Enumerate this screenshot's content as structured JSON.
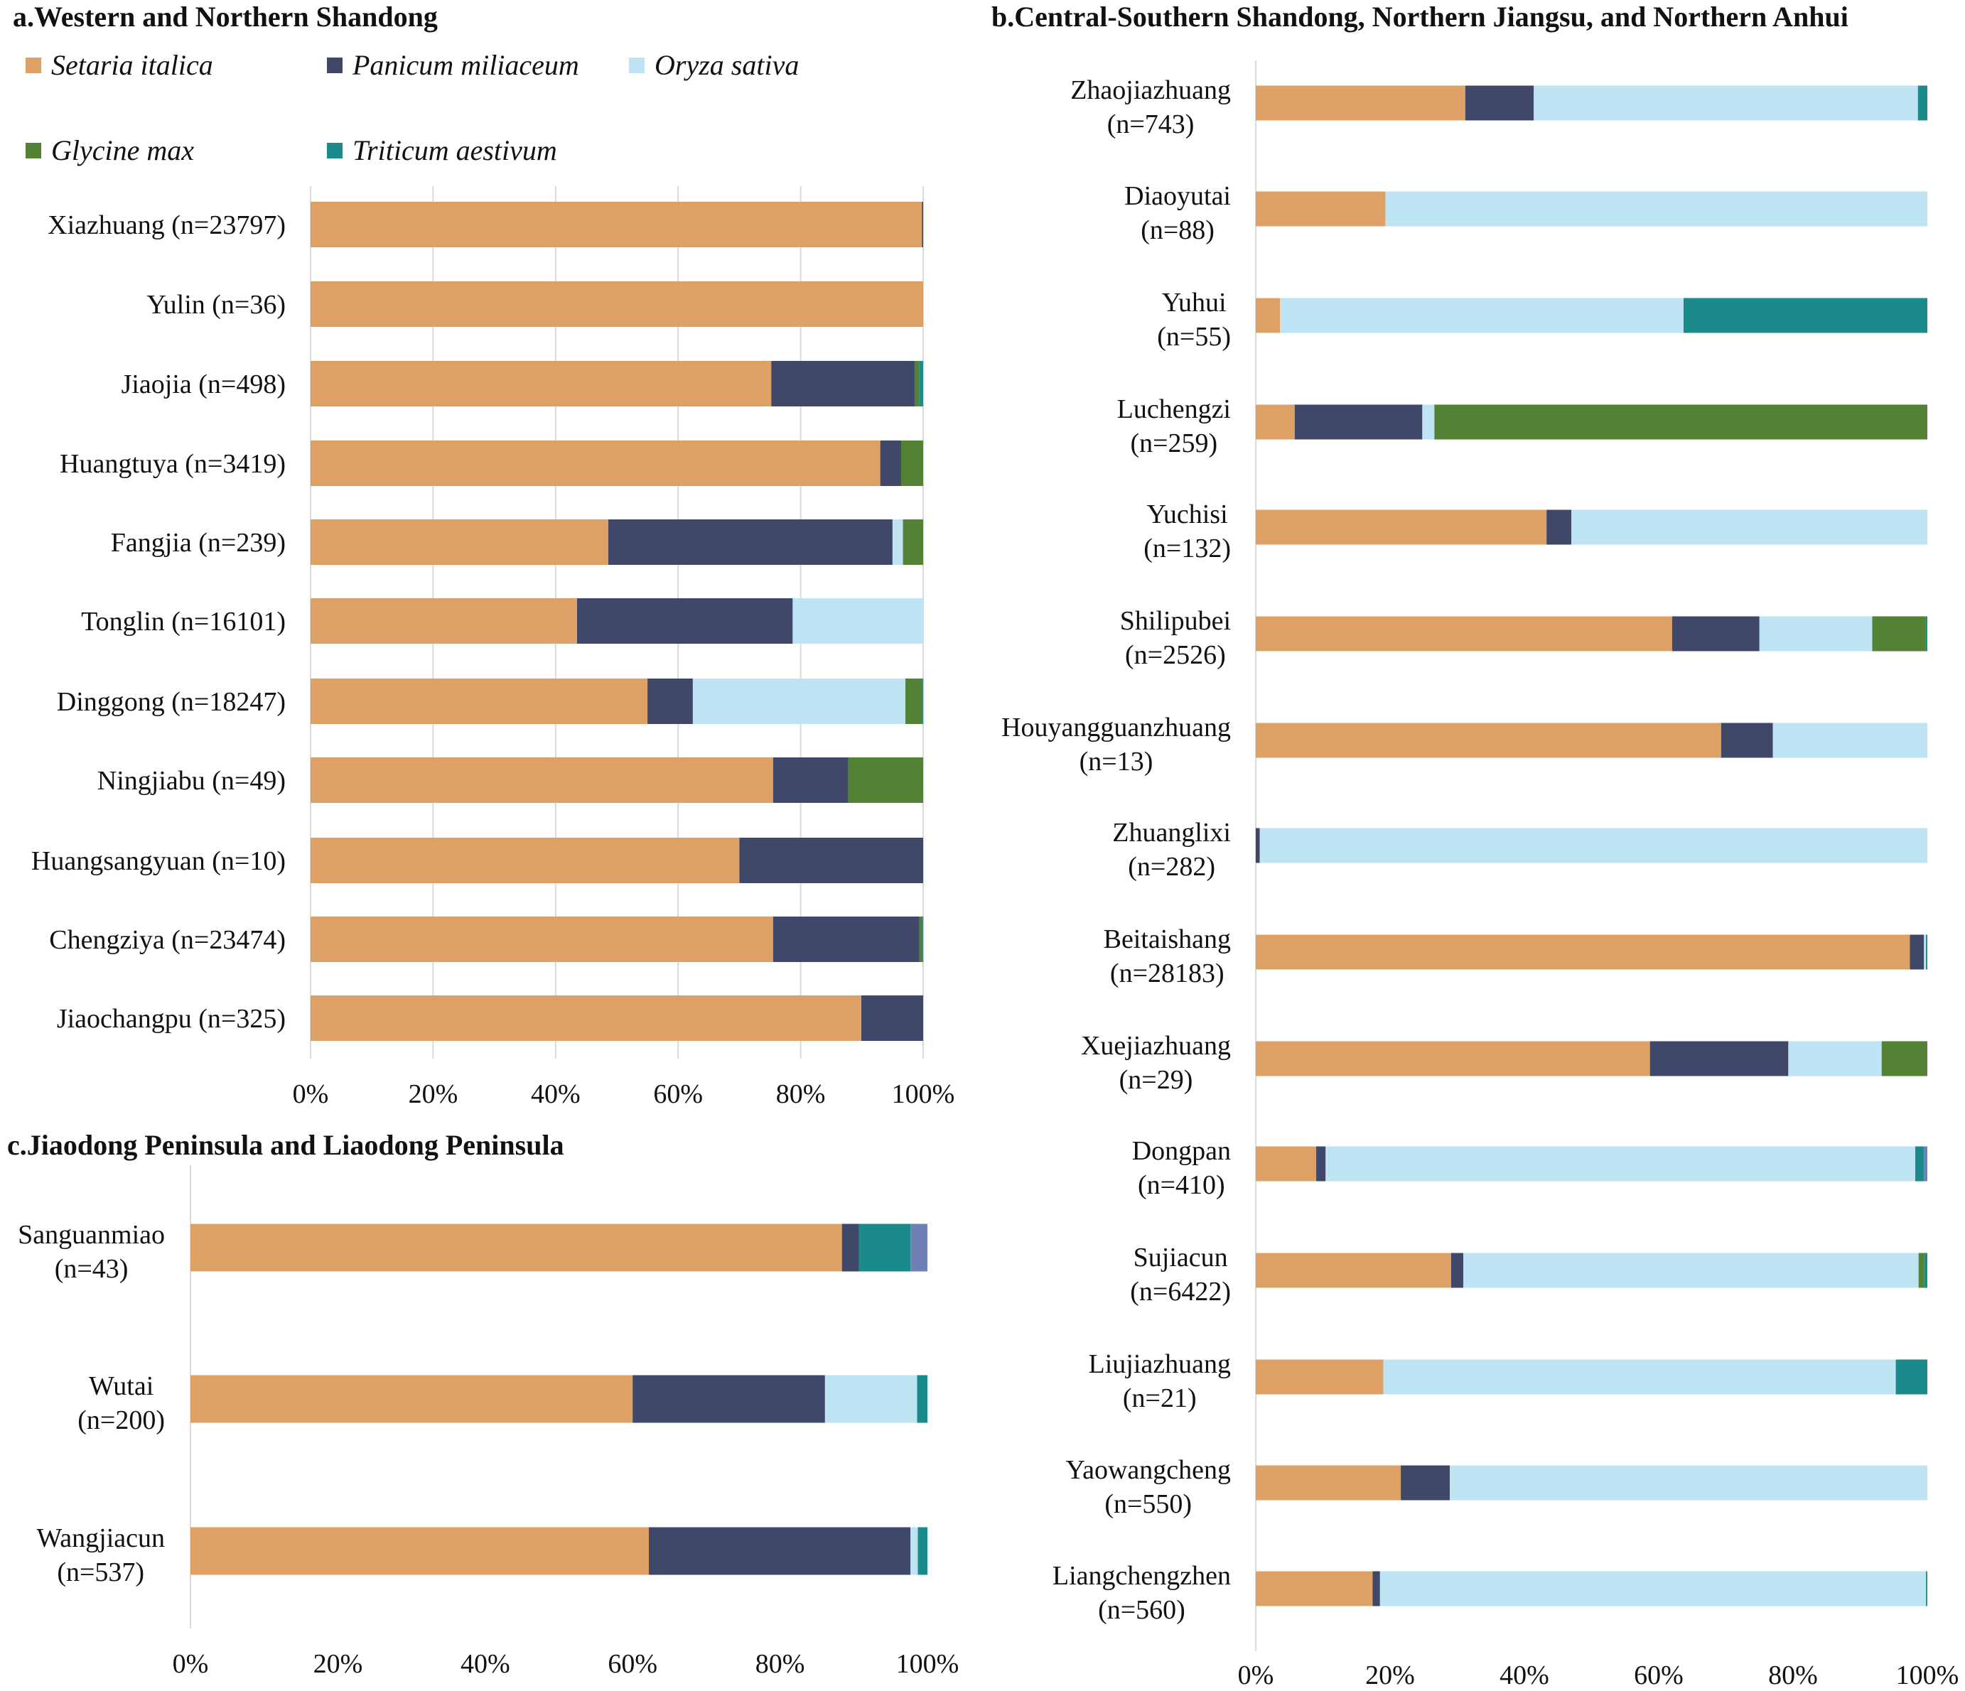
{
  "legend": {
    "items": [
      {
        "key": "setaria",
        "label": "Setaria italica",
        "color": "#DDA065"
      },
      {
        "key": "panicum",
        "label": "Panicum miliaceum",
        "color": "#3F4868"
      },
      {
        "key": "oryza",
        "label": "Oryza sativa",
        "color": "#BEE3F3"
      },
      {
        "key": "glycine",
        "label": "Glycine max",
        "color": "#548235"
      },
      {
        "key": "triticum",
        "label": "Triticum aestivum",
        "color": "#1A8A8A"
      }
    ],
    "unlabeled_color": "#6E80B4"
  },
  "chart_data": [
    {
      "id": "a",
      "type": "bar",
      "orientation": "horizontal-stacked-percent",
      "title": "a.Western and Northern Shandong",
      "xlabel": "",
      "ylabel": "",
      "xlim": [
        0,
        100
      ],
      "x_ticks": [
        "0%",
        "20%",
        "40%",
        "60%",
        "80%",
        "100%"
      ],
      "grid": true,
      "legend_position": "top",
      "series_keys": [
        "setaria",
        "panicum",
        "oryza",
        "glycine",
        "triticum",
        "other"
      ],
      "categories": [
        {
          "label": "Xiazhuang (n=23797)",
          "values": [
            99.8,
            0.2,
            0,
            0,
            0,
            0
          ]
        },
        {
          "label": "Yulin (n=36)",
          "values": [
            100,
            0,
            0,
            0,
            0,
            0
          ]
        },
        {
          "label": "Jiaojia (n=498)",
          "values": [
            75.2,
            23.4,
            0,
            0.8,
            0.6,
            0
          ]
        },
        {
          "label": "Huangtuya (n=3419)",
          "values": [
            93.0,
            3.4,
            0,
            3.6,
            0,
            0
          ]
        },
        {
          "label": "Fangjia (n=239)",
          "values": [
            48.6,
            46.4,
            1.7,
            3.3,
            0,
            0
          ]
        },
        {
          "label": "Tonglin (n=16101)",
          "values": [
            43.5,
            35.2,
            21.3,
            0,
            0,
            0
          ]
        },
        {
          "label": "Dinggong (n=18247)",
          "values": [
            55.0,
            7.4,
            34.7,
            2.8,
            0.1,
            0
          ]
        },
        {
          "label": "Ningjiabu (n=49)",
          "values": [
            75.5,
            12.3,
            0,
            12.2,
            0,
            0
          ]
        },
        {
          "label": "Huangsangyuan (n=10)",
          "values": [
            70,
            30,
            0,
            0,
            0,
            0
          ]
        },
        {
          "label": "Chengziya (n=23474)",
          "values": [
            75.5,
            23.9,
            0,
            0.5,
            0.1,
            0
          ]
        },
        {
          "label": "Jiaochangpu (n=325)",
          "values": [
            89.9,
            10.1,
            0,
            0,
            0,
            0
          ]
        }
      ]
    },
    {
      "id": "b",
      "type": "bar",
      "orientation": "horizontal-stacked-percent",
      "title": "b.Central-Southern Shandong, Northern Jiangsu, and Northern Anhui",
      "xlabel": "",
      "ylabel": "",
      "xlim": [
        0,
        100
      ],
      "x_ticks": [
        "0%",
        "20%",
        "40%",
        "60%",
        "80%",
        "100%"
      ],
      "grid": false,
      "series_keys": [
        "setaria",
        "panicum",
        "oryza",
        "glycine",
        "triticum",
        "other"
      ],
      "categories": [
        {
          "label": [
            "Zhaojiazhuang",
            "(n=743)"
          ],
          "values": [
            31.2,
            10.2,
            57.2,
            0,
            1.4,
            0
          ]
        },
        {
          "label": [
            "Diaoyutai",
            "(n=88)"
          ],
          "values": [
            19.3,
            0,
            80.7,
            0,
            0,
            0
          ]
        },
        {
          "label": [
            "Yuhui",
            "(n=55)"
          ],
          "values": [
            3.6,
            0,
            60.1,
            0,
            36.3,
            0
          ]
        },
        {
          "label": [
            "Luchengzi",
            "(n=259)"
          ],
          "values": [
            5.8,
            19.0,
            1.8,
            73.4,
            0,
            0
          ]
        },
        {
          "label": [
            "Yuchisi",
            "(n=132)"
          ],
          "values": [
            43.3,
            3.7,
            53.0,
            0,
            0,
            0
          ]
        },
        {
          "label": [
            "Shilipubei",
            "(n=2526)"
          ],
          "values": [
            62.0,
            13.0,
            16.8,
            7.9,
            0.3,
            0
          ]
        },
        {
          "label": [
            "Houyangguanzhuang",
            "(n=13)"
          ],
          "values": [
            69.3,
            7.7,
            23.0,
            0,
            0,
            0
          ]
        },
        {
          "label": [
            "Zhuanglixi",
            "(n=282)"
          ],
          "values": [
            0,
            0.6,
            99.4,
            0,
            0,
            0
          ]
        },
        {
          "label": [
            "Beitaishang",
            "(n=28183)"
          ],
          "values": [
            97.4,
            2.1,
            0.3,
            0,
            0.2,
            0
          ]
        },
        {
          "label": [
            "Xuejiazhuang",
            "(n=29)"
          ],
          "values": [
            58.7,
            20.6,
            13.9,
            6.8,
            0,
            0
          ]
        },
        {
          "label": [
            "Dongpan",
            "(n=410)"
          ],
          "values": [
            9.0,
            1.4,
            87.8,
            0,
            1.3,
            0.5
          ]
        },
        {
          "label": [
            "Sujiacun",
            "(n=6422)"
          ],
          "values": [
            29.1,
            1.8,
            67.8,
            0.8,
            0.5,
            0
          ]
        },
        {
          "label": [
            "Liujiazhuang",
            "(n=21)"
          ],
          "values": [
            19.0,
            0,
            76.3,
            0,
            4.7,
            0
          ]
        },
        {
          "label": [
            "Yaowangcheng",
            "(n=550)"
          ],
          "values": [
            21.6,
            7.3,
            71.1,
            0,
            0,
            0
          ]
        },
        {
          "label": [
            "Liangchengzhen",
            "(n=560)"
          ],
          "values": [
            17.4,
            1.1,
            81.3,
            0,
            0.2,
            0
          ]
        }
      ]
    },
    {
      "id": "c",
      "type": "bar",
      "orientation": "horizontal-stacked-percent",
      "title": "c.Jiaodong Peninsula and Liaodong Peninsula",
      "xlabel": "",
      "ylabel": "",
      "xlim": [
        0,
        100
      ],
      "x_ticks": [
        "0%",
        "20%",
        "40%",
        "60%",
        "80%",
        "100%"
      ],
      "grid": false,
      "series_keys": [
        "setaria",
        "panicum",
        "oryza",
        "glycine",
        "triticum",
        "other"
      ],
      "categories": [
        {
          "label": [
            "Sanguanmiao",
            "(n=43)"
          ],
          "values": [
            88.4,
            2.3,
            0,
            0,
            7.0,
            2.3
          ]
        },
        {
          "label": [
            "Wutai",
            "(n=200)"
          ],
          "values": [
            60.0,
            26.1,
            12.5,
            0,
            1.4,
            0
          ]
        },
        {
          "label": [
            "Wangjiacun",
            "(n=537)"
          ],
          "values": [
            62.2,
            35.5,
            1.0,
            0,
            1.3,
            0
          ]
        }
      ]
    }
  ]
}
